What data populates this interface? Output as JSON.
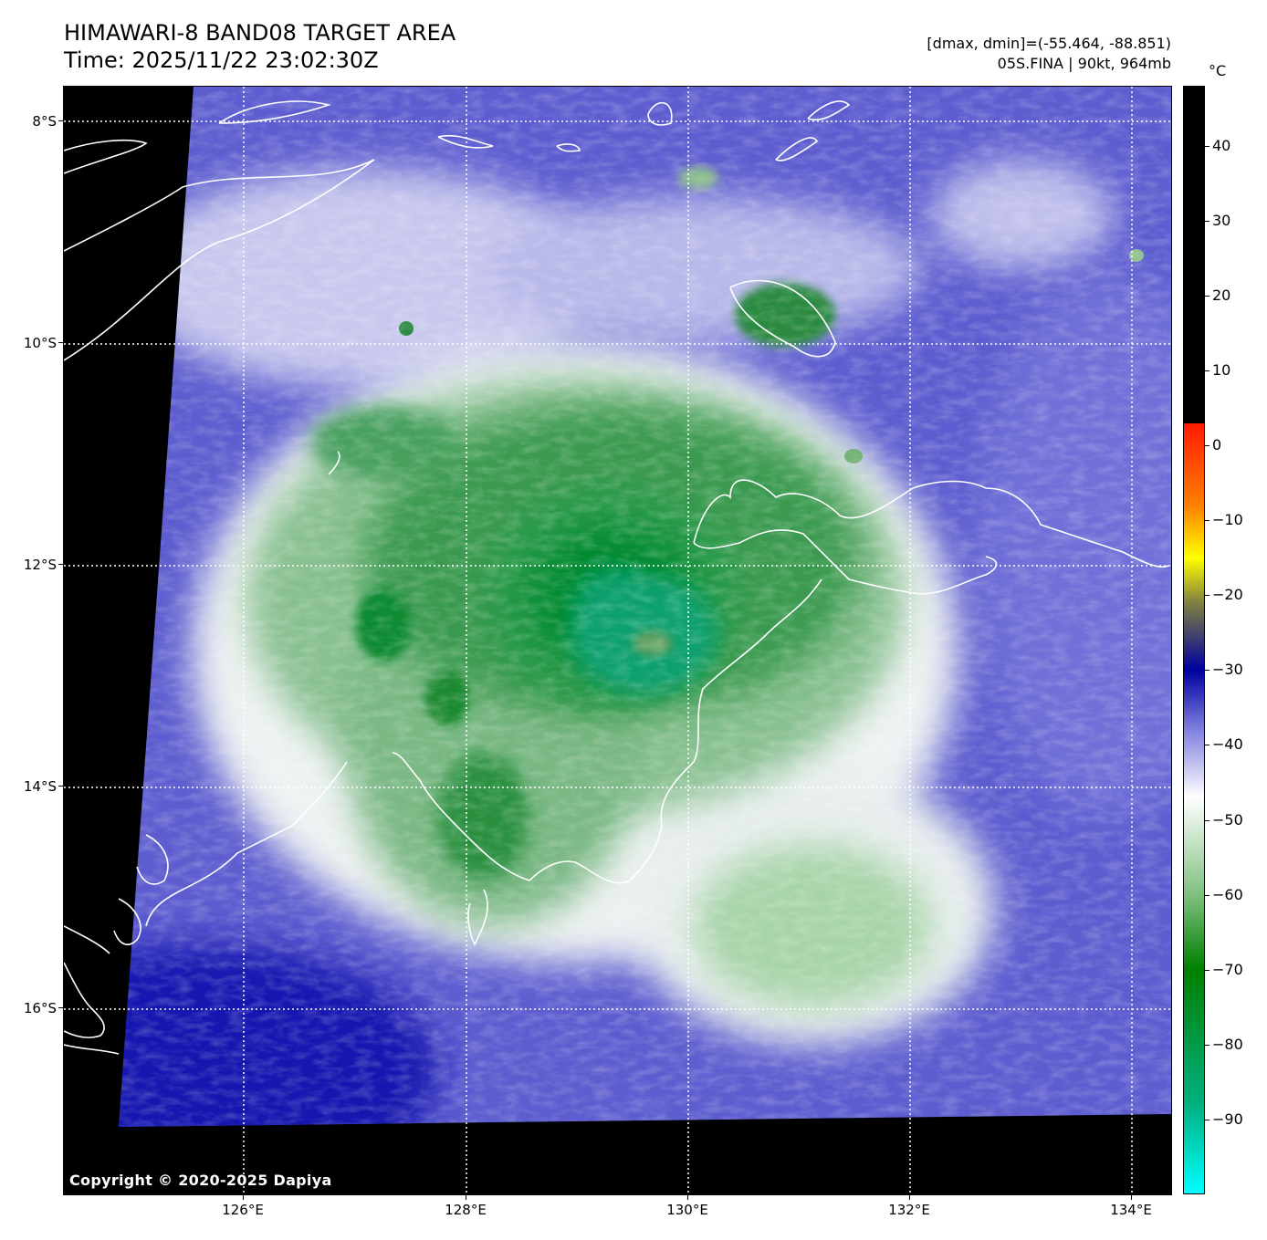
{
  "title": {
    "line1": "HIMAWARI-8 BAND08 TARGET AREA",
    "line2": "Time: 2025/11/22 23:02:30Z"
  },
  "info": {
    "line1": "[dmax, dmin]=(-55.464, -88.851)",
    "line2": "05S.FINA | 90kt, 964mb"
  },
  "map": {
    "lat_labels": [
      "8°S",
      "10°S",
      "12°S",
      "14°S",
      "16°S"
    ],
    "lon_labels": [
      "126°E",
      "128°E",
      "130°E",
      "132°E",
      "134°E"
    ],
    "copyright": "Copyright © 2020-2025 Dapiya"
  },
  "colorbar": {
    "unit": "°C",
    "labels": [
      "40",
      "30",
      "20",
      "10",
      "0",
      "−10",
      "−20",
      "−30",
      "−40",
      "−50",
      "−60",
      "−70",
      "−80",
      "−90"
    ],
    "colors": {
      "warm": "#000000",
      "red": "#ff1a00",
      "yellow": "#ffff00",
      "olive": "#808040",
      "blue": "#0000a0",
      "white": "#ffffff",
      "green": "#008000",
      "cyan": "#00ffff"
    }
  }
}
